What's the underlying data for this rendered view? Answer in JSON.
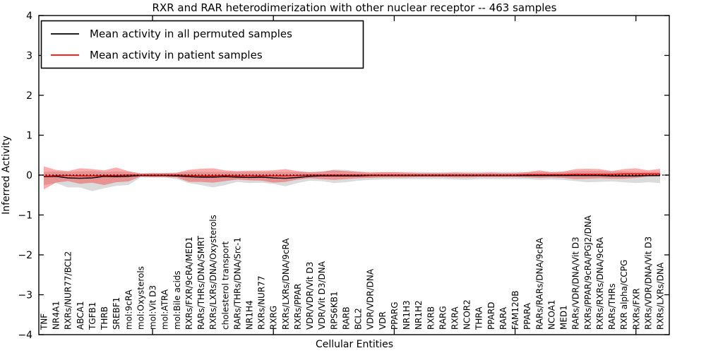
{
  "chart_data": {
    "type": "line",
    "title": "RXR and RAR heterodimerization with other nuclear receptor -- 463 samples",
    "xlabel": "Cellular Entities",
    "ylabel": "Inferred Activity",
    "ylim": [
      -4,
      4
    ],
    "yticks": [
      4,
      3,
      2,
      1,
      0,
      -1,
      -2,
      -3,
      -4
    ],
    "xtick_positions": [
      10,
      20,
      30,
      40,
      50
    ],
    "grid": false,
    "legend_position": "upper left",
    "zero_line": {
      "style": "dotted",
      "color": "#000000",
      "y": 0
    },
    "categories": [
      "TNF",
      "NR4A1",
      "RXRs/NUR77/BCL2",
      "ABCA1",
      "TGFB1",
      "THRB",
      "SREBF1",
      "mol:9cRA",
      "mol:Oxysterols",
      "mol:Vit D3",
      "mol:ATRA",
      "mol:Bile acids",
      "RXRs/FXR/9cRA/MED1",
      "RARs/THRs/DNA/SMRT",
      "RXRs/LXRs/DNA/Oxysterols",
      "cholesterol transport",
      "RARs/THRs/DNA/Src-1",
      "NR1H4",
      "RXRs/NUR77",
      "RXRG",
      "RXRs/LXRs/DNA/9cRA",
      "RXRs/PPAR",
      "VDR/VDR/Vit D3",
      "VDR/Vit D3/DNA",
      "RPS6KB1",
      "RARB",
      "BCL2",
      "VDR/VDR/DNA",
      "VDR",
      "PPARG",
      "NR1H3",
      "NR1H2",
      "RXRB",
      "RARG",
      "RXRA",
      "NCOR2",
      "THRA",
      "PPARD",
      "RARA",
      "FAM120B",
      "PPARA",
      "RARs/RARs/DNA/9cRA",
      "NCOA1",
      "MED1",
      "RARs/VDR/DNA/Vit D3",
      "RXRs/PPAR/9cRA/PGJ2/DNA",
      "RXRs/RXRs/DNA/9cRA",
      "RARs/THRs",
      "RXR alpha/CCPG",
      "RXRs/FXR",
      "RXRs/VDR/DNA/Vit D3",
      "RXRs/LXRs/DNA"
    ],
    "series": [
      {
        "name": "Mean activity in all permuted samples",
        "color": "#000000",
        "values": [
          -0.04,
          -0.03,
          -0.07,
          -0.08,
          -0.07,
          -0.03,
          -0.04,
          -0.03,
          -0.01,
          -0.01,
          -0.01,
          -0.02,
          -0.04,
          -0.05,
          -0.05,
          -0.04,
          -0.05,
          -0.06,
          -0.05,
          -0.07,
          -0.08,
          -0.06,
          -0.03,
          -0.02,
          -0.02,
          -0.02,
          -0.02,
          -0.01,
          -0.01,
          -0.01,
          -0.01,
          -0.01,
          -0.01,
          -0.01,
          -0.01,
          -0.01,
          -0.01,
          -0.01,
          -0.01,
          -0.01,
          -0.01,
          -0.01,
          -0.01,
          -0.01,
          -0.01,
          -0.01,
          -0.01,
          -0.02,
          -0.02,
          -0.02,
          -0.01,
          -0.01
        ]
      },
      {
        "name": "Mean activity in patient samples",
        "color": "#ff0000",
        "values": [
          -0.03,
          -0.01,
          -0.01,
          -0.02,
          -0.02,
          -0.01,
          -0.01,
          0,
          0,
          0,
          0,
          0,
          -0.01,
          -0.02,
          -0.02,
          -0.01,
          -0.02,
          -0.02,
          -0.02,
          -0.02,
          -0.02,
          -0.01,
          0,
          0,
          0,
          0,
          0,
          0,
          0,
          0,
          0,
          0,
          0,
          0,
          0,
          0,
          0,
          0,
          0,
          0,
          0.01,
          0.01,
          0.01,
          0.01,
          0.02,
          0.02,
          0.02,
          0.02,
          0.03,
          0.03,
          0.03,
          0.03
        ]
      }
    ],
    "bands": [
      {
        "name": "permuted-samples-range",
        "color": "#999999",
        "opacity": 0.35,
        "upper": [
          0.08,
          0.09,
          0.08,
          0.09,
          0.1,
          0.08,
          0.09,
          0.08,
          0.05,
          0.05,
          0.05,
          0.06,
          0.08,
          0.08,
          0.08,
          0.08,
          0.08,
          0.08,
          0.08,
          0.08,
          0.08,
          0.08,
          0.08,
          0.08,
          0.14,
          0.13,
          0.09,
          0.08,
          0.08,
          0.08,
          0.08,
          0.08,
          0.07,
          0.07,
          0.08,
          0.08,
          0.08,
          0.08,
          0.08,
          0.08,
          0.08,
          0.08,
          0.08,
          0.08,
          0.09,
          0.1,
          0.1,
          0.09,
          0.09,
          0.08,
          0.08,
          0.08
        ],
        "lower": [
          -0.25,
          -0.2,
          -0.31,
          -0.31,
          -0.4,
          -0.33,
          -0.27,
          -0.25,
          -0.06,
          -0.06,
          -0.06,
          -0.1,
          -0.2,
          -0.25,
          -0.31,
          -0.25,
          -0.17,
          -0.2,
          -0.19,
          -0.22,
          -0.28,
          -0.2,
          -0.14,
          -0.15,
          -0.2,
          -0.18,
          -0.14,
          -0.12,
          -0.11,
          -0.1,
          -0.1,
          -0.1,
          -0.1,
          -0.1,
          -0.11,
          -0.12,
          -0.1,
          -0.1,
          -0.1,
          -0.1,
          -0.1,
          -0.12,
          -0.11,
          -0.12,
          -0.15,
          -0.18,
          -0.17,
          -0.16,
          -0.18,
          -0.2,
          -0.18,
          -0.2
        ]
      },
      {
        "name": "patient-samples-range",
        "color": "#ff0000",
        "opacity": 0.33,
        "upper": [
          0.22,
          0.13,
          0.1,
          0.17,
          0.15,
          0.12,
          0.19,
          0.1,
          0.04,
          0.05,
          0.05,
          0.06,
          0.13,
          0.16,
          0.17,
          0.12,
          0.1,
          0.11,
          0.11,
          0.12,
          0.15,
          0.1,
          0.07,
          0.09,
          0.12,
          0.1,
          0.08,
          0.06,
          0.07,
          0.07,
          0.06,
          0.05,
          0.05,
          0.05,
          0.06,
          0.05,
          0.05,
          0.06,
          0.05,
          0.05,
          0.07,
          0.12,
          0.07,
          0.09,
          0.15,
          0.16,
          0.15,
          0.1,
          0.15,
          0.17,
          0.12,
          0.16
        ],
        "lower": [
          -0.36,
          -0.19,
          -0.15,
          -0.22,
          -0.19,
          -0.25,
          -0.18,
          -0.16,
          -0.04,
          -0.05,
          -0.05,
          -0.06,
          -0.17,
          -0.17,
          -0.19,
          -0.15,
          -0.11,
          -0.13,
          -0.14,
          -0.19,
          -0.17,
          -0.11,
          -0.08,
          -0.1,
          -0.12,
          -0.1,
          -0.08,
          -0.07,
          -0.06,
          -0.06,
          -0.06,
          -0.05,
          -0.05,
          -0.05,
          -0.06,
          -0.06,
          -0.05,
          -0.05,
          -0.05,
          -0.05,
          -0.06,
          -0.07,
          -0.06,
          -0.07,
          -0.1,
          -0.09,
          -0.08,
          -0.09,
          -0.09,
          -0.07,
          -0.04,
          -0.03
        ]
      }
    ]
  }
}
